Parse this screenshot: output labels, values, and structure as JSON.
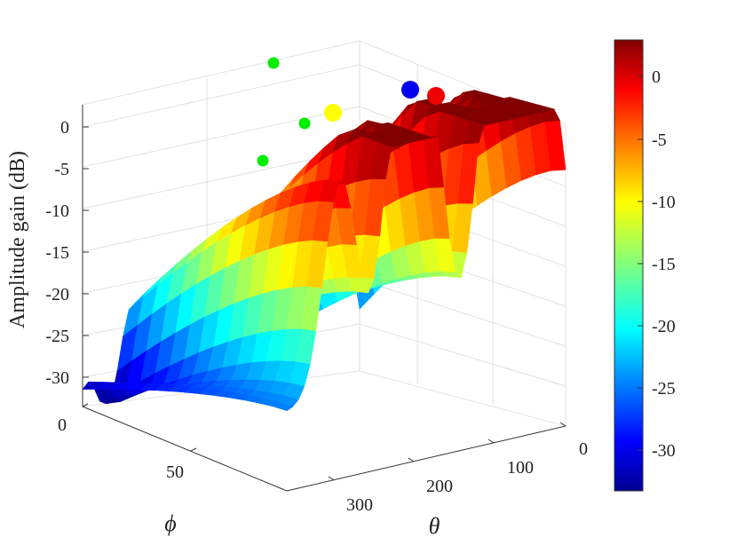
{
  "chart_data": {
    "type": "surface",
    "zlabel": "Amplitude gain (dB)",
    "xlabel": "θ",
    "ylabel": "ϕ",
    "theta_ticks": [
      "0",
      "100",
      "200",
      "300"
    ],
    "phi_ticks": [
      "0",
      "50"
    ],
    "z_ticks": [
      "0",
      "-5",
      "-10",
      "-15",
      "-20",
      "-25",
      "-30"
    ],
    "zlim": [
      -33,
      2.5
    ],
    "colormap": "jet",
    "colorbar": {
      "ticks": [
        "0",
        "-5",
        "-10",
        "-15",
        "-20",
        "-25",
        "-30"
      ],
      "clim": [
        -33,
        2.5
      ]
    },
    "markers": [
      {
        "color": "#00ee00",
        "size": "small"
      },
      {
        "color": "#00ee00",
        "size": "small"
      },
      {
        "color": "#00ee00",
        "size": "small"
      },
      {
        "color": "#ffff00",
        "size": "large"
      },
      {
        "color": "#0000ee",
        "size": "large"
      },
      {
        "color": "#ee0000",
        "size": "large"
      }
    ],
    "grid": true
  }
}
